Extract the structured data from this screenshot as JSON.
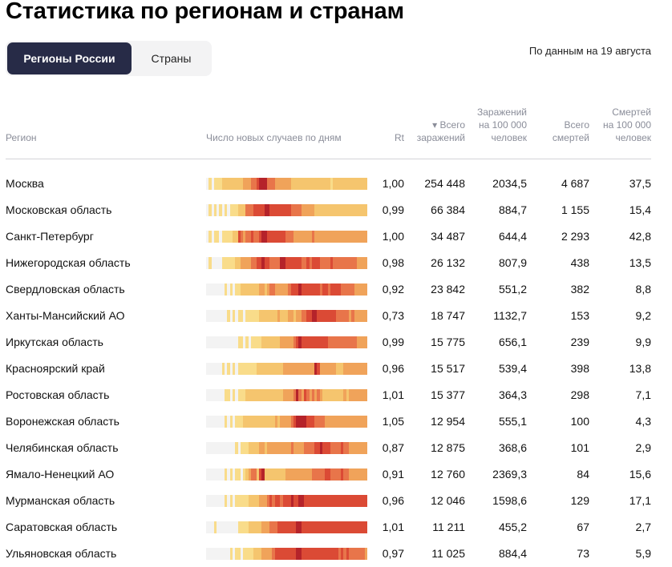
{
  "page": {
    "title": "Статистика по регионам и странам",
    "tabs": [
      {
        "label": "Регионы России",
        "active": true
      },
      {
        "label": "Страны",
        "active": false
      }
    ],
    "date_note": "По данным на 19 августа"
  },
  "colors": {
    "tab_active_bg": "#272b47",
    "tab_bg": "#f3f3f4",
    "header_text": "#8a8d99",
    "heat_scale": [
      "#f3f3f3",
      "#f9dc8a",
      "#f5c56e",
      "#f0a35a",
      "#e8754a",
      "#db4a35",
      "#b5232a"
    ]
  },
  "table": {
    "columns": {
      "region": "Регион",
      "sparkline": "Число новых случаев по дням",
      "rt": "Rt",
      "total_cases_line1": "▾ Всего",
      "total_cases_line2": "заражений",
      "cases_per_100k_line1": "Заражений",
      "cases_per_100k_line2": "на 100 000",
      "cases_per_100k_line3": "человек",
      "total_deaths_line1": "Всего",
      "total_deaths_line2": "смертей",
      "deaths_per_100k_line1": "Смертей",
      "deaths_per_100k_line2": "на 100 000",
      "deaths_per_100k_line3": "человек"
    },
    "sort": {
      "column": "total_cases",
      "direction": "desc"
    },
    "rows": [
      {
        "region": "Москва",
        "rt": "1,00",
        "total_cases": "254 448",
        "cases_per_100k": "2034,5",
        "total_deaths": "4 687",
        "deaths_per_100k": "37,5",
        "heat": "0101112222222233344566644433333322222222222222212222222222222"
      },
      {
        "region": "Московская область",
        "rt": "0,99",
        "total_cases": "66 384",
        "cases_per_100k": "884,7",
        "total_deaths": "1 155",
        "deaths_per_100k": "15,4",
        "heat": "0101010101112224445555665555555544443333322222222222222222222"
      },
      {
        "region": "Санкт-Петербург",
        "rt": "1,00",
        "total_cases": "34 487",
        "cases_per_100k": "644,4",
        "total_deaths": "2 293",
        "deaths_per_100k": "42,8",
        "heat": "0101101111225434454456655555554443333333433333333333333333333"
      },
      {
        "region": "Нижегородская область",
        "rt": "0,98",
        "total_cases": "26 132",
        "cases_per_100k": "807,9",
        "total_deaths": "438",
        "deaths_per_100k": "13,5",
        "heat": "0100001111122333344556554444665555554454555444454444444443333"
      },
      {
        "region": "Свердловская область",
        "rt": "0,92",
        "total_cases": "23 842",
        "cases_per_100k": "551,2",
        "total_deaths": "382",
        "deaths_per_100k": "8,8",
        "heat": "0000000101011222222233234433333455565555555455455554444433333"
      },
      {
        "region": "Ханты-Мансийский АО",
        "rt": "0,73",
        "total_cases": "18 747",
        "cases_per_100k": "1132,7",
        "total_deaths": "153",
        "deaths_per_100k": "9,2",
        "heat": "0000000010101101111122222223222332334455665555555444443433333"
      },
      {
        "region": "Иркутская область",
        "rt": "0,99",
        "total_cases": "15 775",
        "cases_per_100k": "656,1",
        "total_deaths": "239",
        "deaths_per_100k": "9,9",
        "heat": "0000000000001101011112222222333334565555555555444444444443333"
      },
      {
        "region": "Красноярский край",
        "rt": "0,96",
        "total_cases": "15 517",
        "cases_per_100k": "539,4",
        "total_deaths": "398",
        "deaths_per_100k": "13,8",
        "heat": "0000001010101111111222222222233333333333365333333222333333333"
      },
      {
        "region": "Ростовская область",
        "rt": "1,01",
        "total_cases": "15 377",
        "cases_per_100k": "364,3",
        "total_deaths": "298",
        "deaths_per_100k": "7,1",
        "heat": "0000000110101112222222222222233334643543434322222222323333333"
      },
      {
        "region": "Воронежская область",
        "rt": "1,05",
        "total_cases": "12 954",
        "cases_per_100k": "555,1",
        "total_deaths": "100",
        "deaths_per_100k": "4,3",
        "heat": "0000000101011122222222222232333345666655544443333333333333333"
      },
      {
        "region": "Челябинская область",
        "rt": "0,87",
        "total_cases": "12 875",
        "cases_per_100k": "368,6",
        "total_deaths": "101",
        "deaths_per_100k": "2,9",
        "heat": "0000000000010111222233233333333343333444455655544445443333333"
      },
      {
        "region": "Ямало-Ненецкий АО",
        "rt": "0,91",
        "total_cases": "12 760",
        "cases_per_100k": "2369,3",
        "total_deaths": "84",
        "deaths_per_100k": "15,6",
        "heat": "0000000101011012344256222222223333333333444445544445443333333"
      },
      {
        "region": "Мурманская область",
        "rt": "0,96",
        "total_cases": "12 046",
        "cases_per_100k": "1598,6",
        "total_deaths": "129",
        "deaths_per_100k": "17,1",
        "heat": "0000000101011111222233345455455565566555555555555555555555555"
      },
      {
        "region": "Саратовская область",
        "rt": "1,01",
        "total_cases": "11 211",
        "cases_per_100k": "455,2",
        "total_deaths": "67",
        "deaths_per_100k": "2,7",
        "heat": "0001000000001111222223334445555555665555555555555555555555555"
      },
      {
        "region": "Ульяновская область",
        "rt": "0,97",
        "total_cases": "11 025",
        "cases_per_100k": "884,4",
        "total_deaths": "73",
        "deaths_per_100k": "5,9",
        "heat": "0000000001011011112223333455555555665555555555555545454444443"
      }
    ]
  }
}
